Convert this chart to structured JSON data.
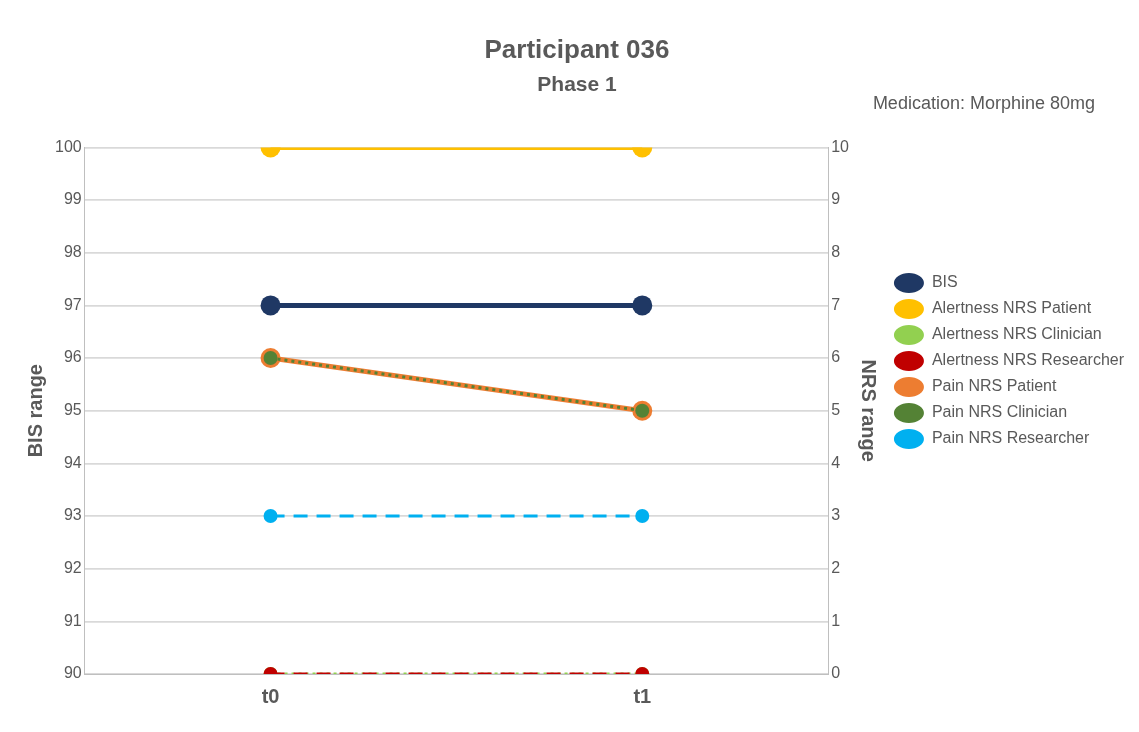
{
  "chart_data": {
    "type": "line",
    "title": "Participant 036",
    "subtitle": "Phase 1",
    "annotations": [
      "Medication: Morphine 80mg"
    ],
    "categories": [
      "t0",
      "t1"
    ],
    "ylabel": "BIS range",
    "y2label": "NRS range",
    "ylim": [
      90,
      100
    ],
    "yticks": [
      90,
      91,
      92,
      93,
      94,
      95,
      96,
      97,
      98,
      99,
      100
    ],
    "y2lim": [
      0,
      10
    ],
    "y2ticks": [
      0,
      1,
      2,
      3,
      4,
      5,
      6,
      7,
      8,
      9,
      10
    ],
    "grid": "y",
    "legend": "right",
    "marker": "circle",
    "series": [
      {
        "name": "BIS",
        "color": "#1f3864",
        "values": [
          97,
          97
        ],
        "line_style": "solid"
      },
      {
        "name": "Alertness NRS Patient",
        "color": "#ffc000",
        "values": [
          10,
          10
        ],
        "axis": "y2",
        "line_style": "solid"
      },
      {
        "name": "Alertness NRS Clinician",
        "color": "#92d050",
        "values": [
          0,
          0
        ],
        "axis": "y2",
        "line_style": "dotted"
      },
      {
        "name": "Alertness NRS Researcher",
        "color": "#c00000",
        "values": [
          0,
          0
        ],
        "axis": "y2",
        "line_style": "dashed"
      },
      {
        "name": "Pain NRS Patient",
        "color": "#ed7d31",
        "values": [
          6,
          5
        ],
        "axis": "y2",
        "line_style": "solid"
      },
      {
        "name": "Pain NRS Clinician",
        "color": "#548235",
        "values": [
          6,
          5
        ],
        "axis": "y2",
        "line_style": "dotted"
      },
      {
        "name": "Pain NRS Researcher",
        "color": "#00b0f0",
        "values": [
          3,
          3
        ],
        "axis": "y2",
        "line_style": "dashed"
      }
    ]
  }
}
